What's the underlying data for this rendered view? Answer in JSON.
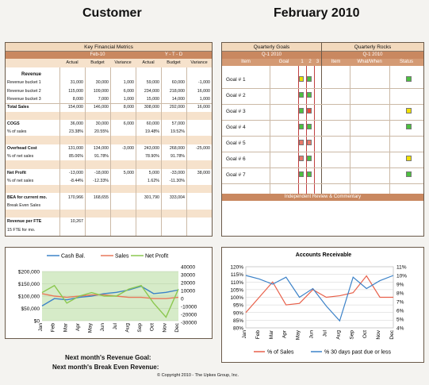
{
  "header": {
    "left": "Customer",
    "right": "February 2010"
  },
  "kfm": {
    "title": "Key Financial Metrics",
    "period_month": "Feb-10",
    "period_ytd": "Y - T - D",
    "cols": [
      "Actual",
      "Budget",
      "Variance",
      "Actual",
      "Budget",
      "Variance"
    ],
    "rows": [
      {
        "label": "Revenue",
        "bold": true,
        "vals": [
          "",
          "",
          "",
          "",
          "",
          ""
        ]
      },
      {
        "label": "Revenue bucket 1",
        "vals": [
          "31,000",
          "30,000",
          "1,000",
          "59,000",
          "60,000",
          "-1,000"
        ]
      },
      {
        "label": "Revenue bucket 2",
        "vals": [
          "115,000",
          "109,000",
          "6,000",
          "234,000",
          "218,000",
          "16,000"
        ]
      },
      {
        "label": "Revenue bucket 3",
        "vals": [
          "8,000",
          "7,000",
          "1,000",
          "15,000",
          "14,000",
          "1,000"
        ]
      },
      {
        "label": "Total Sales",
        "bold": true,
        "vals": [
          "154,000",
          "146,000",
          "8,000",
          "308,000",
          "292,000",
          "16,000"
        ]
      },
      {
        "label": "",
        "vals": [
          "",
          "",
          "",
          "",
          "",
          ""
        ]
      },
      {
        "label": "COGS",
        "bold": true,
        "vals": [
          "36,000",
          "30,000",
          "6,000",
          "60,000",
          "57,000",
          ""
        ]
      },
      {
        "label": "% of  sales",
        "vals": [
          "23.38%",
          "20.55%",
          "",
          "19.48%",
          "19.52%",
          ""
        ]
      },
      {
        "label": "",
        "vals": [
          "",
          "",
          "",
          "",
          "",
          ""
        ]
      },
      {
        "label": "Overhead Cost",
        "bold": true,
        "vals": [
          "131,000",
          "134,000",
          "-3,000",
          "243,000",
          "268,000",
          "-25,000"
        ]
      },
      {
        "label": "% of net sales",
        "vals": [
          "85.06%",
          "91.78%",
          "",
          "78.90%",
          "91.78%",
          ""
        ]
      },
      {
        "label": "",
        "vals": [
          "",
          "",
          "",
          "",
          "",
          ""
        ]
      },
      {
        "label": "Net Profit",
        "bold": true,
        "vals": [
          "-13,000",
          "-18,000",
          "5,000",
          "5,000",
          "-33,000",
          "38,000"
        ]
      },
      {
        "label": "% of net sales",
        "vals": [
          "-8.44%",
          "-12.33%",
          "",
          "1.62%",
          "-11.30%",
          ""
        ]
      },
      {
        "label": "",
        "vals": [
          "",
          "",
          "",
          "",
          "",
          ""
        ]
      },
      {
        "label": "BEA for current mo.",
        "bold": true,
        "vals": [
          "170,966",
          "168,655",
          "",
          "301,790",
          "333,004",
          ""
        ]
      },
      {
        "label": "Break Even Sales",
        "vals": [
          "",
          "",
          "",
          "",
          "",
          ""
        ]
      },
      {
        "label": "",
        "vals": [
          "",
          "",
          "",
          "",
          "",
          ""
        ]
      },
      {
        "label": "Revenue per FTE",
        "bold": true,
        "vals": [
          "10,267",
          "",
          "",
          "",
          "",
          ""
        ]
      },
      {
        "label": "15 FTE for mo.",
        "vals": [
          "",
          "",
          "",
          "",
          "",
          ""
        ]
      }
    ]
  },
  "goals": {
    "title": "Quarterly Goals",
    "quarter": "Q-1 2010",
    "cols": [
      "Item",
      "Goal",
      "1",
      "2",
      "3"
    ],
    "items": [
      {
        "label": "Goal # 1",
        "c1": "#e8e000",
        "c2": "#4cc040"
      },
      {
        "label": "Goal # 2",
        "c1": "#4cc040",
        "c2": "#4cc040"
      },
      {
        "label": "Goal # 3",
        "c1": "#4cc040",
        "c2": "#e84a3a"
      },
      {
        "label": "Goal # 4",
        "c1": "#4cc040",
        "c2": "#4cc040"
      },
      {
        "label": "Goal # 5",
        "c1": "#e8786a",
        "c2": "#e8786a"
      },
      {
        "label": "Goal # 6",
        "c1": "#e8786a",
        "c2": "#4cc040"
      },
      {
        "label": "Goal # 7",
        "c1": "#4cc040",
        "c2": "#4cc040"
      }
    ],
    "review": "Independent Review & Commentary"
  },
  "rocks": {
    "title": "Quarterly Rocks",
    "quarter": "Q-1 2010",
    "cols": [
      "Item",
      "What/When",
      "Status"
    ],
    "status": [
      "#4cc040",
      "",
      "#f0e000",
      "#4cc040",
      "",
      "#f0e000",
      "#4cc040"
    ]
  },
  "chart1": {
    "type": "line",
    "categories": [
      "Jan",
      "Feb",
      "Mar",
      "Apr",
      "May",
      "Jun",
      "Jul",
      "Aug",
      "Sep",
      "Oct",
      "Nov",
      "Dec"
    ],
    "ylim": [
      0,
      200000
    ],
    "ticks_left": [
      "$200,000",
      "$150,000",
      "$100,000",
      "$50,000",
      "$0"
    ],
    "ticks_right": [
      "40000",
      "30000",
      "20000",
      "10000",
      "0",
      "-10000",
      "-20000",
      "-30000"
    ],
    "y2lim": [
      -30000,
      40000
    ],
    "series": [
      {
        "name": "Cash Bal.",
        "color": "#3c82c8",
        "values": [
          60000,
          90000,
          85000,
          95000,
          100000,
          110000,
          115000,
          125000,
          140000,
          110000,
          115000,
          125000
        ],
        "axis": "left"
      },
      {
        "name": "Sales",
        "color": "#e8785a",
        "values": [
          110000,
          100000,
          95000,
          100000,
          105000,
          105000,
          100000,
          95000,
          95000,
          90000,
          90000,
          95000
        ],
        "axis": "left"
      },
      {
        "name": "Net Profit",
        "color": "#8cc850",
        "values": [
          10000,
          20000,
          -5000,
          5000,
          10000,
          5000,
          5000,
          15000,
          20000,
          -5000,
          -25000,
          15000
        ],
        "axis": "right"
      }
    ]
  },
  "chart2": {
    "type": "line",
    "title": "Accounts Receivable",
    "categories": [
      "Jan",
      "Feb",
      "Mar",
      "Apr",
      "May",
      "Jun",
      "Jul",
      "Aug",
      "Sep",
      "Oct",
      "Nov",
      "Dec"
    ],
    "ylim": [
      80,
      120
    ],
    "ticks_left": [
      "120%",
      "115%",
      "110%",
      "105%",
      "100%",
      "95%",
      "90%",
      "85%",
      "80%"
    ],
    "y2lim": [
      4,
      11
    ],
    "ticks_right": [
      "11%",
      "10%",
      "9%",
      "8%",
      "7%",
      "6%",
      "5%",
      "4%"
    ],
    "series": [
      {
        "name": "% of Sales",
        "color": "#e8604a",
        "values": [
          90,
          100,
          110,
          95,
          96,
          105,
          100,
          101,
          103,
          114,
          100,
          100
        ],
        "axis": "left"
      },
      {
        "name": "% 30 days past due or less",
        "color": "#3c82c8",
        "values": [
          10,
          9.6,
          9,
          9.8,
          7.5,
          8.5,
          6.5,
          4.8,
          9.8,
          8.5,
          9.4,
          10
        ],
        "axis": "right"
      }
    ]
  },
  "footer": {
    "goal1": "Next month's Revenue Goal:",
    "goal2": "Next month's Break Even Revenue:",
    "copyright": "© Copyright 2010 - The Upkes Group, Inc."
  }
}
